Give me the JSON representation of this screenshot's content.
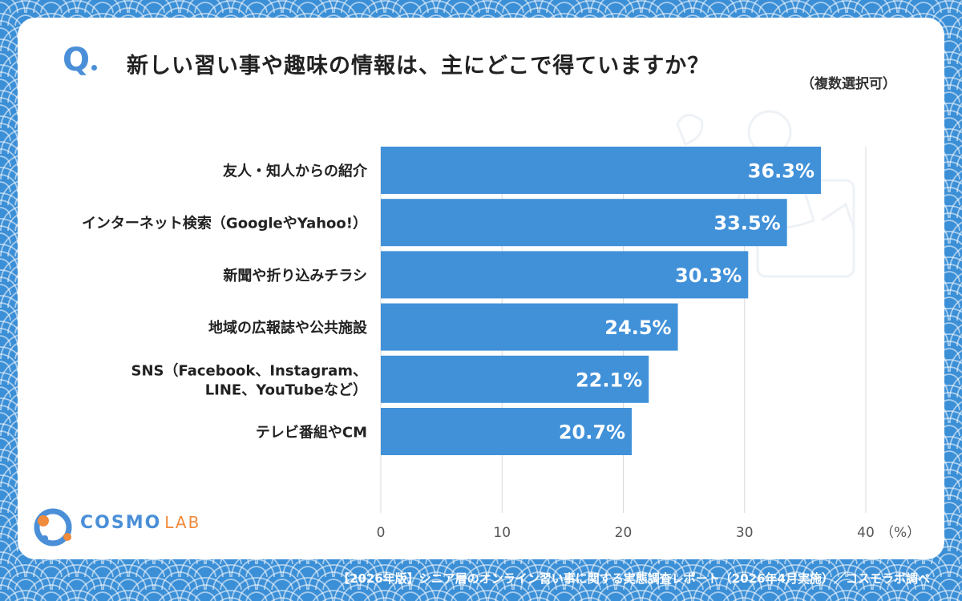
{
  "header": {
    "q_label": "Q",
    "title": "新しい習い事や趣味の情報は、主にどこで得ていますか？",
    "subtitle": "（複数選択可）"
  },
  "chart_data": {
    "type": "bar",
    "orientation": "horizontal",
    "categories": [
      [
        "友人・知人からの紹介"
      ],
      [
        "インターネット検索（GoogleやYahoo!）"
      ],
      [
        "新聞や折り込みチラシ"
      ],
      [
        "地域の広報誌や公共施設"
      ],
      [
        "SNS（Facebook、Instagram、",
        "LINE、YouTubeなど）"
      ],
      [
        "テレビ番組やCM"
      ]
    ],
    "values": [
      36.3,
      33.5,
      30.3,
      24.5,
      22.1,
      20.7
    ],
    "value_labels": [
      "36.3%",
      "33.5%",
      "30.3%",
      "24.5%",
      "22.1%",
      "20.7%"
    ],
    "xlim": [
      0,
      40
    ],
    "xticks": [
      0,
      10,
      20,
      30,
      40
    ],
    "xtick_labels": [
      "0",
      "10",
      "20",
      "30",
      "40"
    ],
    "unit_label": "（%）",
    "grid": true,
    "bar_color": "#4191d9"
  },
  "branding": {
    "logo_text": "COSMO",
    "logo_text_suffix": "LAB"
  },
  "footer": {
    "text": "【2026年版】シニア層のオンライン習い事に関する実態調査レポート（2026年4月実施）／コスモラボ調べ"
  },
  "colors": {
    "accent": "#4a8fd8",
    "logo_orange": "#f08a3c",
    "background": "#3b8fd6"
  }
}
